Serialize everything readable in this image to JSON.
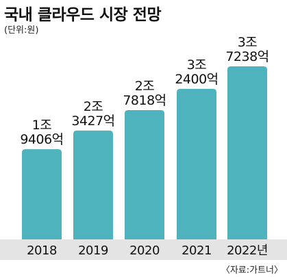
{
  "title": "국내 클라우드 시장 전망",
  "unit": "(단위:원)",
  "source": "〈자료:가트너〉",
  "colors": {
    "bar": "#4fb3bd",
    "axis_band": "#e4e4e4",
    "text": "#111111"
  },
  "chart_data": {
    "type": "bar",
    "categories": [
      "2018",
      "2019",
      "2020",
      "2021",
      "2022년"
    ],
    "values": [
      19406,
      23427,
      27818,
      32400,
      37238
    ],
    "value_unit": "억원",
    "labels": [
      [
        "1조",
        "9406억"
      ],
      [
        "2조",
        "3427억"
      ],
      [
        "2조",
        "7818억"
      ],
      [
        "3조",
        "2400억"
      ],
      [
        "3조",
        "7238억"
      ]
    ],
    "title": "국내 클라우드 시장 전망",
    "xlabel": "",
    "ylabel": "",
    "grid": false,
    "legend": "none"
  }
}
